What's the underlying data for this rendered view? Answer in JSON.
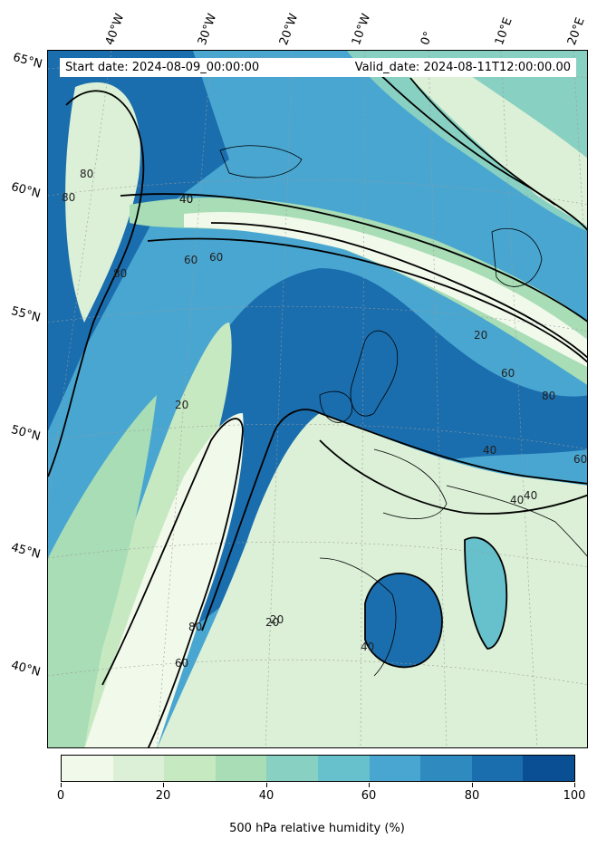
{
  "header": {
    "start_date": "Start date: 2024-08-09_00:00:00",
    "valid_date": "Valid_date: 2024-08-11T12:00:00.00"
  },
  "lat_labels": [
    "65°N",
    "60°N",
    "55°N",
    "50°N",
    "45°N",
    "40°N"
  ],
  "lon_labels": [
    "40°W",
    "30°W",
    "20°W",
    "10°W",
    "0°",
    "10°E",
    "20°E"
  ],
  "contour_labels": [
    "80",
    "40",
    "80",
    "60",
    "20",
    "40",
    "60",
    "80",
    "40",
    "60",
    "20",
    "40",
    "60",
    "80",
    "40",
    "20",
    "80",
    "60",
    "40",
    "20"
  ],
  "colorbar": {
    "title": "500 hPa relative humidity (%)",
    "ticks": [
      "0",
      "20",
      "40",
      "60",
      "80",
      "100"
    ],
    "colors": [
      "#f1f9ea",
      "#dbf0d6",
      "#c7e9c1",
      "#a8ddb5",
      "#88d0c2",
      "#66c1cc",
      "#49a6d1",
      "#2f8ac0",
      "#1b6eae",
      "#0a4e94"
    ]
  },
  "chart_data": {
    "type": "heatmap",
    "variable": "500 hPa relative humidity",
    "unit": "%",
    "range": [
      0,
      100
    ],
    "levels": [
      0,
      10,
      20,
      30,
      40,
      50,
      60,
      70,
      80,
      90,
      100
    ],
    "contour_levels": [
      20,
      40,
      60,
      80
    ],
    "latitudes_labeled": [
      "65°N",
      "60°N",
      "55°N",
      "50°N",
      "45°N",
      "40°N"
    ],
    "longitudes_labeled": [
      "40°W",
      "30°W",
      "20°W",
      "10°W",
      "0°",
      "10°E",
      "20°E"
    ]
  }
}
